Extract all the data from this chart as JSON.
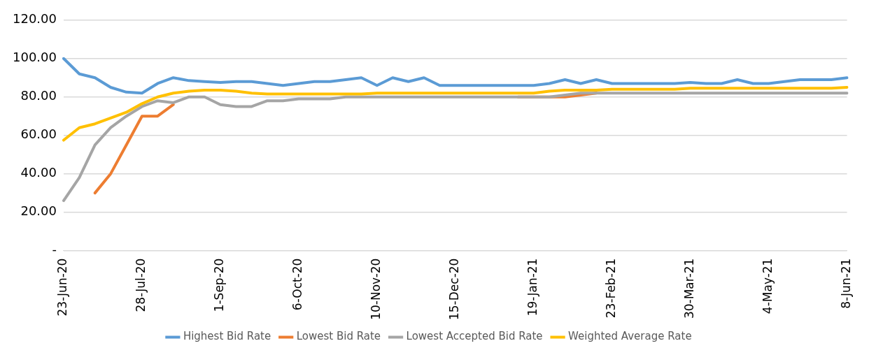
{
  "chart_data": {
    "type": "line",
    "categories": [
      "23-Jun-20",
      null,
      null,
      null,
      null,
      "28-Jul-20",
      null,
      null,
      null,
      null,
      "1-Sep-20",
      null,
      null,
      null,
      null,
      "6-Oct-20",
      null,
      null,
      null,
      null,
      "10-Nov-20",
      null,
      null,
      null,
      null,
      "15-Dec-20",
      null,
      null,
      null,
      null,
      "19-Jan-21",
      null,
      null,
      null,
      null,
      "23-Feb-21",
      null,
      null,
      null,
      null,
      "30-Mar-21",
      null,
      null,
      null,
      null,
      "4-May-21",
      null,
      null,
      null,
      null,
      "8-Jun-21"
    ],
    "series": [
      {
        "name": "Highest Bid Rate",
        "color": "#5b9bd5",
        "values": [
          100,
          92,
          90,
          85,
          82.5,
          82,
          87,
          90,
          88.5,
          88,
          87.5,
          88,
          88,
          87,
          86,
          87,
          88,
          88,
          89,
          90,
          86,
          90,
          88,
          90,
          86,
          86,
          86,
          86,
          86,
          86,
          86,
          87,
          89,
          87,
          89,
          87,
          87,
          87,
          87,
          87,
          87.5,
          87,
          87,
          89,
          87,
          87,
          88,
          89,
          89,
          89,
          90
        ]
      },
      {
        "name": "Lowest Bid Rate",
        "color": "#ed7d31",
        "values": [
          null,
          null,
          30,
          40,
          55,
          70,
          70,
          76,
          null,
          null,
          null,
          null,
          null,
          null,
          null,
          null,
          null,
          null,
          null,
          null,
          null,
          null,
          null,
          null,
          null,
          null,
          null,
          null,
          null,
          80,
          80,
          80,
          80,
          81,
          82,
          null,
          null,
          null,
          null,
          null,
          null,
          null,
          null,
          null,
          null,
          null,
          null,
          null,
          null,
          null,
          null
        ]
      },
      {
        "name": "Lowest Accepted Bid Rate",
        "color": "#a5a5a5",
        "values": [
          26,
          38,
          55,
          64,
          70,
          75,
          78,
          77,
          80,
          80,
          76,
          75,
          75,
          78,
          78,
          79,
          79,
          79,
          80,
          80,
          80,
          80,
          80,
          80,
          80,
          80,
          80,
          80,
          80,
          80,
          80,
          80,
          81,
          82,
          82,
          82,
          82,
          82,
          82,
          82,
          82,
          82,
          82,
          82,
          82,
          82,
          82,
          82,
          82,
          82,
          82
        ]
      },
      {
        "name": "Weighted Average Rate",
        "color": "#ffc000",
        "values": [
          57.5,
          64,
          66,
          69,
          72,
          76.5,
          80,
          82,
          83,
          83.5,
          83.5,
          83,
          82,
          81.5,
          81.5,
          81.5,
          81.5,
          81.5,
          81.5,
          81.5,
          82,
          82,
          82,
          82,
          82,
          82,
          82,
          82,
          82,
          82,
          82,
          83,
          83.5,
          83.5,
          83.5,
          84,
          84,
          84,
          84,
          84,
          84.5,
          84.5,
          84.5,
          84.5,
          84.5,
          84.5,
          84.5,
          84.5,
          84.5,
          84.5,
          85
        ]
      }
    ],
    "ylim": [
      0,
      120
    ],
    "yticks": [
      {
        "value": 0,
        "label": "-"
      },
      {
        "value": 20,
        "label": "20.00"
      },
      {
        "value": 40,
        "label": "40.00"
      },
      {
        "value": 60,
        "label": "60.00"
      },
      {
        "value": 80,
        "label": "80.00"
      },
      {
        "value": 100,
        "label": "100.00"
      },
      {
        "value": 120,
        "label": "120.00"
      }
    ],
    "grid": "y",
    "legend": "bottom",
    "line_style": "solid",
    "marker": "none"
  }
}
